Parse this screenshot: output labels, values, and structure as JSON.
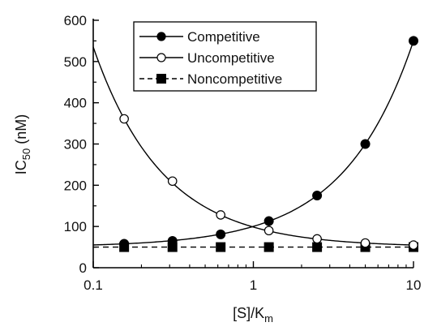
{
  "chart_data": {
    "type": "line",
    "xlabel": "[S]/K",
    "xlabel_sub": "m",
    "ylabel": "IC",
    "ylabel_sub": "50",
    "ylabel_unit": " (nM)",
    "x_scale": "log",
    "xlim": [
      0.1,
      10
    ],
    "ylim": [
      0,
      600
    ],
    "x_ticks": [
      0.1,
      1,
      10
    ],
    "x_tick_labels": [
      "0.1",
      "1",
      "10"
    ],
    "y_ticks": [
      0,
      100,
      200,
      300,
      400,
      500,
      600
    ],
    "y_tick_labels": [
      "0",
      "100",
      "200",
      "300",
      "400",
      "500",
      "600"
    ],
    "grid": false,
    "legend_position": "top-center",
    "series": [
      {
        "name": "Competitive",
        "marker": "filled-circle",
        "line": "solid",
        "x": [
          0.156,
          0.3125,
          0.625,
          1.25,
          2.5,
          5,
          10
        ],
        "y": [
          58,
          65,
          81,
          113,
          175,
          300,
          550
        ]
      },
      {
        "name": "Uncompetitive",
        "marker": "open-circle",
        "line": "solid",
        "x": [
          0.156,
          0.3125,
          0.625,
          1.25,
          2.5,
          5,
          10
        ],
        "y": [
          361,
          210,
          128,
          90,
          70,
          60,
          55
        ]
      },
      {
        "name": "Noncompetitive",
        "marker": "filled-square",
        "line": "dashed",
        "x": [
          0.156,
          0.3125,
          0.625,
          1.25,
          2.5,
          5,
          10
        ],
        "y": [
          50,
          50,
          50,
          50,
          50,
          50,
          50
        ]
      }
    ]
  }
}
